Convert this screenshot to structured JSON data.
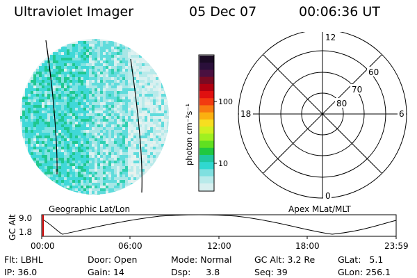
{
  "header": {
    "instrument": "Ultraviolet Imager",
    "date": "05 Dec 07",
    "time": "00:06:36 UT"
  },
  "colorbar": {
    "unit_label": "photon cm⁻²s⁻¹",
    "ticks": [
      "100",
      "10"
    ],
    "colors": [
      "#1a0a24",
      "#2a0f3a",
      "#4a1040",
      "#7a0a22",
      "#b00010",
      "#e01010",
      "#f23a10",
      "#f87a10",
      "#fbb010",
      "#f7de20",
      "#d0f020",
      "#a0f020",
      "#60e020",
      "#20c840",
      "#20c8a0",
      "#30d8d0",
      "#80e0e0",
      "#b8eaea",
      "#d8f0f0"
    ]
  },
  "polar_plot": {
    "mlt_labels": [
      "12",
      "18",
      "6",
      "0"
    ],
    "mlat_labels": [
      "60",
      "70",
      "80"
    ]
  },
  "map_labels": {
    "left": "Geographic Lat/Lon",
    "right": "Apex MLat/MLT"
  },
  "altitude_plot": {
    "ylabel": "GC Alt",
    "yticks": [
      "9.0",
      "1.8"
    ],
    "xticks": [
      "00:00",
      "06:00",
      "12:00",
      "18:00",
      "23:59"
    ],
    "accent": "#cc0000"
  },
  "info": {
    "row1": [
      {
        "key": "Flt:",
        "value": "LBHL"
      },
      {
        "key": "Door:",
        "value": "Open"
      },
      {
        "key": "Mode:",
        "value": "Normal"
      },
      {
        "key": "GC Alt:",
        "value": "3.2 Re"
      },
      {
        "key": "GLat:",
        "value": "5.1"
      }
    ],
    "row2": [
      {
        "key": "IP:",
        "value": "36.0"
      },
      {
        "key": "Gain:",
        "value": "14"
      },
      {
        "key": "Dsp:",
        "value": "3.8"
      },
      {
        "key": "Seq:",
        "value": "39"
      },
      {
        "key": "GLon:",
        "value": "256.1"
      }
    ]
  }
}
